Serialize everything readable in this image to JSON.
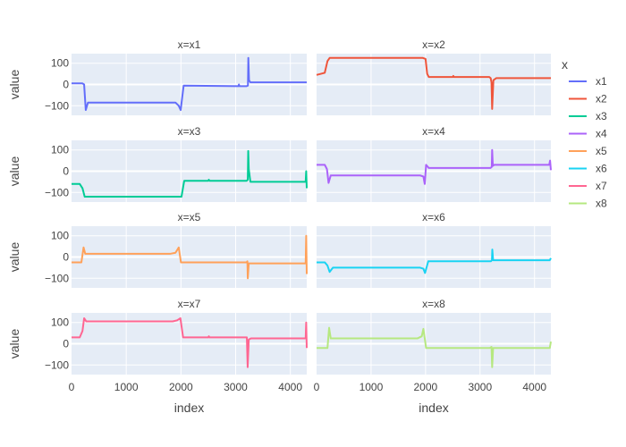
{
  "chart_data": {
    "type": "line",
    "layout": "facet 4 rows x 2 columns",
    "xlabel": "index",
    "ylabel": "value",
    "xlim": [
      0,
      4300
    ],
    "ylim": [
      -145,
      145
    ],
    "x_ticks": [
      0,
      1000,
      2000,
      3000,
      4000
    ],
    "y_ticks": [
      -100,
      0,
      100
    ],
    "grid": true,
    "legend": {
      "title": "x",
      "placement": "right"
    },
    "facet_titles": [
      "x=x1",
      "x=x2",
      "x=x3",
      "x=x4",
      "x=x5",
      "x=x6",
      "x=x7",
      "x=x8"
    ],
    "series": [
      {
        "name": "x1",
        "color": "#636efa",
        "x": [
          0,
          200,
          230,
          260,
          300,
          1850,
          1900,
          1960,
          1995,
          2050,
          3050,
          3060,
          3070,
          3200,
          3225,
          3232,
          3245,
          3270,
          4300
        ],
        "y": [
          5,
          5,
          0,
          -120,
          -85,
          -85,
          -85,
          -100,
          -120,
          -5,
          -8,
          0,
          -8,
          -8,
          -5,
          125,
          20,
          10,
          10
        ]
      },
      {
        "name": "x2",
        "color": "#ef553b",
        "x": [
          0,
          150,
          200,
          240,
          280,
          1950,
          2000,
          2030,
          2060,
          2500,
          2510,
          2520,
          3170,
          3195,
          3210,
          3222,
          3245,
          3300,
          4300
        ],
        "y": [
          45,
          55,
          110,
          125,
          125,
          125,
          120,
          50,
          35,
          35,
          40,
          35,
          35,
          30,
          10,
          -115,
          20,
          30,
          30
        ]
      },
      {
        "name": "x3",
        "color": "#00cc96",
        "x": [
          0,
          150,
          200,
          240,
          280,
          1980,
          2010,
          2060,
          2500,
          2510,
          2520,
          3200,
          3222,
          3230,
          3240,
          3270,
          4280,
          4290,
          4300
        ],
        "y": [
          -60,
          -60,
          -80,
          -120,
          -120,
          -120,
          -120,
          -45,
          -45,
          -40,
          -45,
          -45,
          -40,
          95,
          10,
          -50,
          -50,
          0,
          -80
        ]
      },
      {
        "name": "x4",
        "color": "#ab63fa",
        "x": [
          0,
          150,
          190,
          220,
          260,
          1900,
          1960,
          1985,
          2010,
          2060,
          3190,
          3215,
          3222,
          3235,
          3260,
          4270,
          4285,
          4300
        ],
        "y": [
          30,
          30,
          10,
          -55,
          -20,
          -20,
          -25,
          -60,
          30,
          15,
          15,
          20,
          100,
          25,
          30,
          30,
          50,
          5
        ]
      },
      {
        "name": "x5",
        "color": "#ffa15a",
        "x": [
          0,
          180,
          220,
          250,
          300,
          1800,
          1900,
          1960,
          2000,
          2050,
          3200,
          3215,
          3222,
          3240,
          3280,
          4280,
          4290,
          4300
        ],
        "y": [
          -25,
          -25,
          45,
          15,
          15,
          15,
          20,
          45,
          -25,
          -25,
          -25,
          -20,
          -100,
          -30,
          -30,
          -30,
          100,
          -80
        ]
      },
      {
        "name": "x6",
        "color": "#19d3f3",
        "x": [
          0,
          150,
          200,
          240,
          300,
          1900,
          1960,
          1990,
          2050,
          3200,
          3218,
          3225,
          3240,
          3300,
          4280,
          4300
        ],
        "y": [
          -25,
          -25,
          -40,
          -70,
          -50,
          -50,
          -55,
          -75,
          -20,
          -20,
          -15,
          35,
          -15,
          -15,
          -15,
          -5
        ]
      },
      {
        "name": "x7",
        "color": "#ff6692",
        "x": [
          0,
          150,
          200,
          230,
          270,
          1850,
          1930,
          1990,
          2040,
          2500,
          2510,
          2520,
          3180,
          3205,
          3220,
          3240,
          3280,
          4280,
          4290,
          4300
        ],
        "y": [
          30,
          30,
          60,
          120,
          105,
          105,
          110,
          120,
          30,
          30,
          35,
          30,
          30,
          30,
          -110,
          20,
          25,
          25,
          100,
          -20
        ]
      },
      {
        "name": "x8",
        "color": "#b6e880",
        "x": [
          0,
          200,
          230,
          260,
          300,
          1850,
          1930,
          1960,
          2010,
          2050,
          3180,
          3210,
          3222,
          3240,
          3280,
          4280,
          4300
        ],
        "y": [
          -20,
          -20,
          75,
          25,
          25,
          25,
          35,
          70,
          -20,
          -20,
          -20,
          -15,
          -110,
          -20,
          -20,
          -20,
          10
        ]
      }
    ]
  }
}
